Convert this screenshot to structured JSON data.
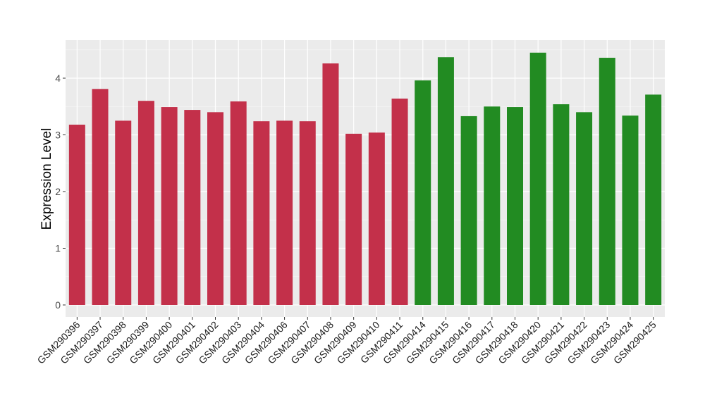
{
  "chart_data": {
    "type": "bar",
    "title": "",
    "xlabel": "",
    "ylabel": "Expression Level",
    "ylim": [
      -0.22,
      4.7
    ],
    "yticks": [
      0,
      1,
      2,
      3,
      4
    ],
    "grid": true,
    "legend": "none",
    "categories": [
      "GSM290396",
      "GSM290397",
      "GSM290398",
      "GSM290399",
      "GSM290400",
      "GSM290401",
      "GSM290402",
      "GSM290403",
      "GSM290404",
      "GSM290406",
      "GSM290407",
      "GSM290408",
      "GSM290409",
      "GSM290410",
      "GSM290411",
      "GSM290414",
      "GSM290415",
      "GSM290416",
      "GSM290417",
      "GSM290418",
      "GSM290420",
      "GSM290421",
      "GSM290422",
      "GSM290423",
      "GSM290424",
      "GSM290425"
    ],
    "values": [
      3.18,
      3.81,
      3.25,
      3.6,
      3.49,
      3.44,
      3.4,
      3.59,
      3.24,
      3.25,
      3.24,
      4.26,
      3.02,
      3.04,
      3.64,
      3.96,
      4.37,
      3.33,
      3.5,
      3.49,
      4.45,
      3.54,
      3.4,
      4.36,
      3.34,
      3.71
    ],
    "groups": [
      0,
      0,
      0,
      0,
      0,
      0,
      0,
      0,
      0,
      0,
      0,
      0,
      0,
      0,
      0,
      1,
      1,
      1,
      1,
      1,
      1,
      1,
      1,
      1,
      1,
      1
    ],
    "group_colors": [
      "#C3304A",
      "#228B22"
    ]
  }
}
